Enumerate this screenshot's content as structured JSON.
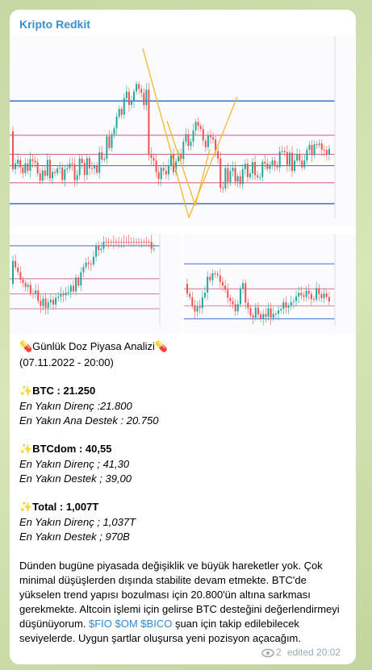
{
  "channel": {
    "name": "Kripto Redkit"
  },
  "message": {
    "title": "💊Günlük Doz Piyasa Analizi💊",
    "date": "(07.11.2022 - 20:00)",
    "sections": [
      {
        "head": "✨BTC : 21.250",
        "lines": [
          "En Yakın Direnç :21.800",
          "En Yakın Ana Destek : 20.750"
        ]
      },
      {
        "head": "✨BTCdom : 40,55",
        "lines": [
          "En Yakın Direnç ; 41,30",
          "En Yakın Destek ; 39,00"
        ]
      },
      {
        "head": "✨Total : 1,007T",
        "lines": [
          "En Yakın Direnç ; 1,037T",
          "En Yakın Destek ; 970B"
        ]
      }
    ],
    "paragraph": {
      "lines_before": [
        "Dünden bugüne piyasada değişiklik ve büyük hareketler yok. Çok",
        "minimal düşüşlerden dışında stabilite devam etmekte. BTC'de",
        "yükselen trend yapısı bozulması için 20.800'ün altına sarkması",
        "gerekmekte. Altcoin işlemi için gelirse BTC desteğini değerlendirmeyi"
      ],
      "before": "düşünüyorum.",
      "links": "$FIO $OM $BICO",
      "after": "şuan için takip edilebilecek",
      "lines_after": [
        "seviyelerde. Uygun şartlar oluşursa yeni pozisyon açacağım."
      ]
    },
    "views": "2",
    "edited": "edited 20:02"
  }
}
